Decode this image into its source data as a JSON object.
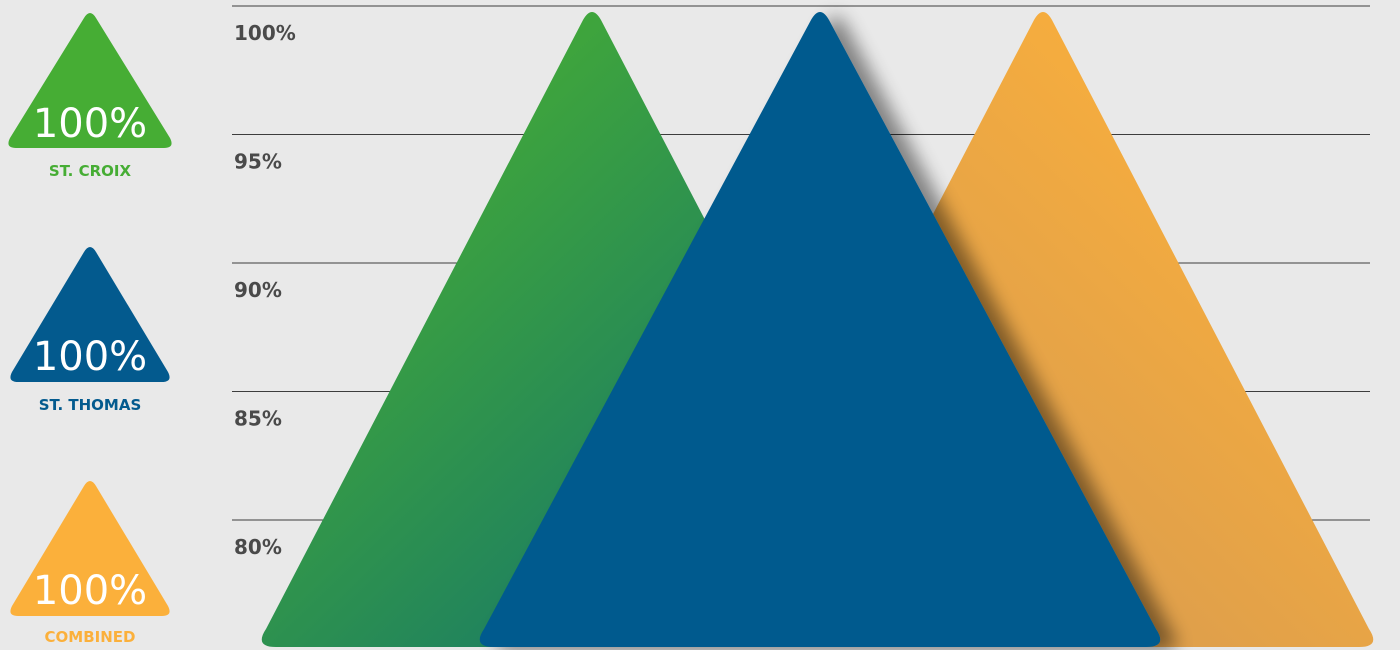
{
  "legend": [
    {
      "label": "ST. CROIX",
      "value_text": "100%",
      "color": "#46ad34",
      "icon": "triangle-icon"
    },
    {
      "label": "ST. THOMAS",
      "value_text": "100%",
      "color": "#035a8e",
      "icon": "triangle-icon"
    },
    {
      "label": "COMBINED",
      "value_text": "100%",
      "color": "#fbb03b",
      "icon": "triangle-icon"
    }
  ],
  "chart_data": {
    "type": "area",
    "y_ticks": [
      "100%",
      "95%",
      "90%",
      "85%",
      "80%"
    ],
    "y_values": [
      100,
      95,
      90,
      85,
      80
    ],
    "grid": true,
    "series": [
      {
        "name": "ST. CROIX",
        "value": 100,
        "color": "#46ad34"
      },
      {
        "name": "ST. THOMAS",
        "value": 100,
        "color": "#035a8e"
      },
      {
        "name": "COMBINED",
        "value": 100,
        "color": "#fbb03b"
      }
    ]
  }
}
